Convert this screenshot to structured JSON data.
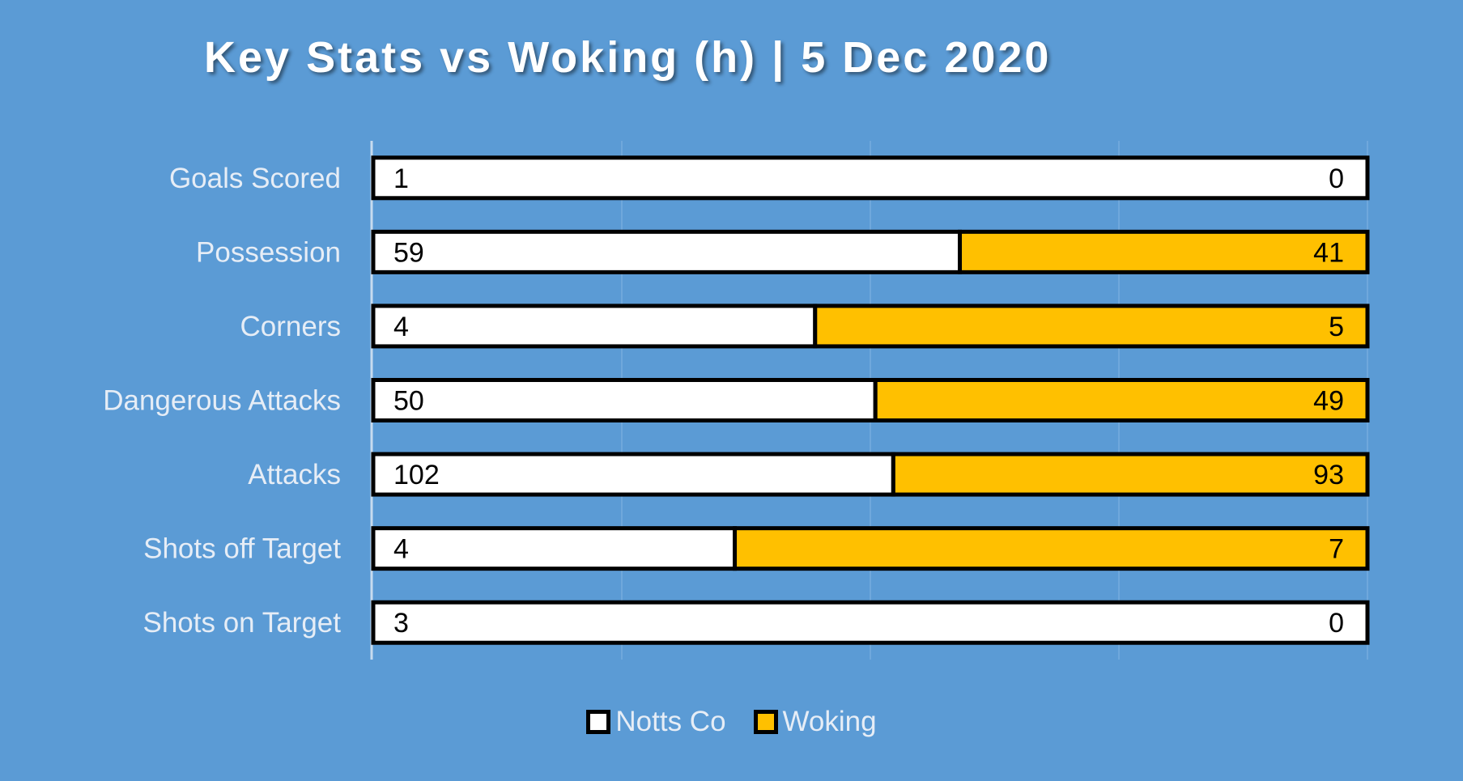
{
  "chart_data": {
    "type": "bar",
    "orientation": "horizontal",
    "stacked": "percent",
    "title": "Key Stats vs Woking (h) | 5 Dec 2020",
    "categories": [
      "Goals Scored",
      "Possession",
      "Corners",
      "Dangerous Attacks",
      "Attacks",
      "Shots off Target",
      "Shots on Target"
    ],
    "series": [
      {
        "name": "Notts Co",
        "color": "#ffffff",
        "values": [
          1,
          59,
          4,
          50,
          102,
          4,
          3
        ]
      },
      {
        "name": "Woking",
        "color": "#ffc000",
        "values": [
          0,
          41,
          5,
          49,
          93,
          7,
          0
        ]
      }
    ],
    "grid": true,
    "legend": "bottom"
  }
}
